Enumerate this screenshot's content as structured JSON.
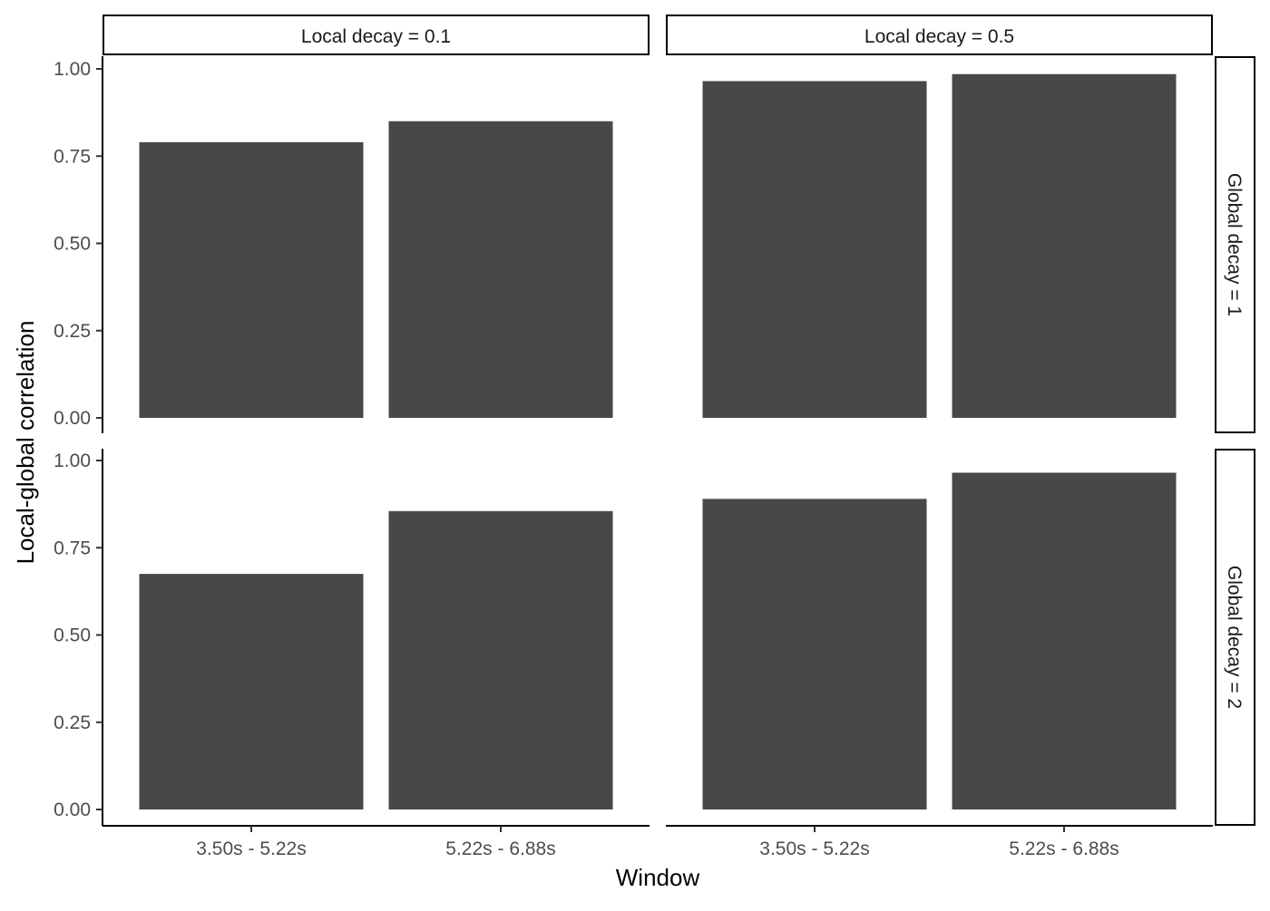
{
  "chart_data": {
    "type": "bar",
    "xlabel": "Window",
    "ylabel": "Local-global correlation",
    "categories": [
      "3.50s - 5.22s",
      "5.22s - 6.88s"
    ],
    "ylim": [
      0,
      1.05
    ],
    "yticks": [
      "0.00",
      "0.25",
      "0.50",
      "0.75",
      "1.00"
    ],
    "ytick_values": [
      0,
      0.25,
      0.5,
      0.75,
      1.0
    ],
    "col_facets": [
      "Local decay = 0.1",
      "Local decay = 0.5"
    ],
    "row_facets": [
      "Global decay = 1",
      "Global decay = 2"
    ],
    "bar_color": "#484848",
    "grid": false,
    "panels": [
      {
        "col": 0,
        "row": 0,
        "values": [
          0.79,
          0.85
        ]
      },
      {
        "col": 1,
        "row": 0,
        "values": [
          0.965,
          0.985
        ]
      },
      {
        "col": 0,
        "row": 1,
        "values": [
          0.675,
          0.855
        ]
      },
      {
        "col": 1,
        "row": 1,
        "values": [
          0.89,
          0.965
        ]
      }
    ]
  }
}
